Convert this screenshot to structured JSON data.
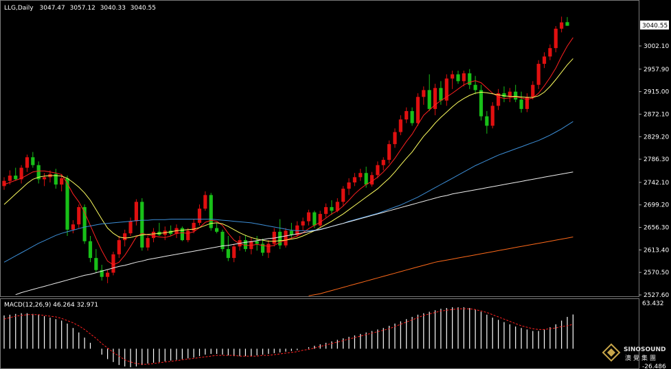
{
  "chart_data": {
    "type": "candlestick",
    "title": "LLG,Daily",
    "ohlc_readout": [
      "3047.47",
      "3057.12",
      "3040.33",
      "3040.55"
    ],
    "price_scale": {
      "ylim": [
        2527.6,
        3083.0
      ],
      "ticks": [
        "3002.10",
        "2957.90",
        "2915.00",
        "2872.10",
        "2829.20",
        "2786.30",
        "2742.10",
        "2699.20",
        "2656.30",
        "2613.40",
        "2570.50",
        "2527.60"
      ],
      "current_price_label": "3040.55",
      "grid": false
    },
    "candles": [
      [
        2735,
        2752,
        2728,
        2745
      ],
      [
        2745,
        2765,
        2738,
        2755
      ],
      [
        2755,
        2770,
        2745,
        2748
      ],
      [
        2748,
        2775,
        2740,
        2770
      ],
      [
        2770,
        2795,
        2762,
        2790
      ],
      [
        2790,
        2800,
        2770,
        2775
      ],
      [
        2775,
        2782,
        2740,
        2748
      ],
      [
        2748,
        2760,
        2735,
        2752
      ],
      [
        2752,
        2765,
        2742,
        2758
      ],
      [
        2758,
        2768,
        2730,
        2738
      ],
      [
        2738,
        2758,
        2725,
        2750
      ],
      [
        2750,
        2755,
        2640,
        2652
      ],
      [
        2652,
        2670,
        2645,
        2662
      ],
      [
        2662,
        2700,
        2655,
        2695
      ],
      [
        2695,
        2700,
        2625,
        2630
      ],
      [
        2630,
        2640,
        2590,
        2598
      ],
      [
        2598,
        2615,
        2570,
        2575
      ],
      [
        2575,
        2585,
        2555,
        2562
      ],
      [
        2562,
        2575,
        2550,
        2570
      ],
      [
        2570,
        2610,
        2565,
        2605
      ],
      [
        2605,
        2640,
        2598,
        2632
      ],
      [
        2632,
        2652,
        2620,
        2645
      ],
      [
        2645,
        2675,
        2640,
        2668
      ],
      [
        2668,
        2710,
        2660,
        2705
      ],
      [
        2705,
        2712,
        2612,
        2618
      ],
      [
        2618,
        2640,
        2612,
        2636
      ],
      [
        2636,
        2655,
        2628,
        2648
      ],
      [
        2648,
        2665,
        2640,
        2642
      ],
      [
        2642,
        2658,
        2632,
        2650
      ],
      [
        2650,
        2660,
        2640,
        2644
      ],
      [
        2644,
        2662,
        2636,
        2655
      ],
      [
        2655,
        2658,
        2630,
        2632
      ],
      [
        2632,
        2655,
        2628,
        2650
      ],
      [
        2650,
        2672,
        2645,
        2665
      ],
      [
        2665,
        2700,
        2660,
        2692
      ],
      [
        2692,
        2725,
        2688,
        2718
      ],
      [
        2718,
        2722,
        2650,
        2655
      ],
      [
        2655,
        2665,
        2645,
        2648
      ],
      [
        2648,
        2652,
        2610,
        2615
      ],
      [
        2615,
        2640,
        2592,
        2598
      ],
      [
        2598,
        2625,
        2590,
        2620
      ],
      [
        2620,
        2640,
        2612,
        2632
      ],
      [
        2632,
        2642,
        2610,
        2615
      ],
      [
        2615,
        2638,
        2605,
        2630
      ],
      [
        2630,
        2640,
        2612,
        2625
      ],
      [
        2625,
        2635,
        2602,
        2608
      ],
      [
        2608,
        2632,
        2598,
        2625
      ],
      [
        2625,
        2655,
        2620,
        2648
      ],
      [
        2648,
        2672,
        2615,
        2622
      ],
      [
        2622,
        2655,
        2618,
        2650
      ],
      [
        2650,
        2665,
        2635,
        2642
      ],
      [
        2642,
        2668,
        2638,
        2660
      ],
      [
        2660,
        2675,
        2650,
        2668
      ],
      [
        2668,
        2690,
        2660,
        2685
      ],
      [
        2685,
        2688,
        2655,
        2660
      ],
      [
        2660,
        2688,
        2655,
        2682
      ],
      [
        2682,
        2702,
        2675,
        2695
      ],
      [
        2695,
        2708,
        2680,
        2688
      ],
      [
        2688,
        2712,
        2685,
        2705
      ],
      [
        2705,
        2735,
        2698,
        2730
      ],
      [
        2730,
        2750,
        2718,
        2742
      ],
      [
        2742,
        2760,
        2735,
        2752
      ],
      [
        2752,
        2768,
        2745,
        2760
      ],
      [
        2760,
        2772,
        2732,
        2738
      ],
      [
        2738,
        2762,
        2734,
        2756
      ],
      [
        2756,
        2782,
        2750,
        2775
      ],
      [
        2775,
        2790,
        2765,
        2785
      ],
      [
        2785,
        2822,
        2778,
        2815
      ],
      [
        2815,
        2845,
        2808,
        2838
      ],
      [
        2838,
        2870,
        2832,
        2862
      ],
      [
        2862,
        2885,
        2855,
        2878
      ],
      [
        2878,
        2885,
        2850,
        2855
      ],
      [
        2855,
        2912,
        2850,
        2905
      ],
      [
        2905,
        2925,
        2890,
        2918
      ],
      [
        2918,
        2948,
        2878,
        2882
      ],
      [
        2882,
        2930,
        2870,
        2922
      ],
      [
        2922,
        2935,
        2890,
        2898
      ],
      [
        2898,
        2948,
        2888,
        2940
      ],
      [
        2940,
        2955,
        2920,
        2948
      ],
      [
        2948,
        2955,
        2930,
        2935
      ],
      [
        2935,
        2955,
        2925,
        2950
      ],
      [
        2950,
        2958,
        2920,
        2928
      ],
      [
        2928,
        2945,
        2910,
        2918
      ],
      [
        2918,
        2928,
        2860,
        2868
      ],
      [
        2868,
        2878,
        2835,
        2850
      ],
      [
        2850,
        2895,
        2845,
        2888
      ],
      [
        2888,
        2920,
        2880,
        2912
      ],
      [
        2912,
        2925,
        2895,
        2905
      ],
      [
        2905,
        2922,
        2895,
        2915
      ],
      [
        2915,
        2928,
        2895,
        2900
      ],
      [
        2900,
        2915,
        2875,
        2882
      ],
      [
        2882,
        2912,
        2876,
        2905
      ],
      [
        2905,
        2935,
        2900,
        2928
      ],
      [
        2928,
        2975,
        2920,
        2968
      ],
      [
        2968,
        2990,
        2960,
        2982
      ],
      [
        2982,
        3005,
        2975,
        2998
      ],
      [
        2998,
        3040,
        2990,
        3035
      ],
      [
        3035,
        3058,
        3028,
        3047
      ],
      [
        3047.47,
        3057.12,
        3040.33,
        3040.55
      ]
    ],
    "moving_averages": [
      {
        "color": "#ff2020",
        "values": [
          2738,
          2742,
          2746,
          2750,
          2756,
          2762,
          2764,
          2764,
          2762,
          2760,
          2757,
          2740,
          2720,
          2705,
          2685,
          2660,
          2635,
          2612,
          2592,
          2585,
          2590,
          2603,
          2620,
          2638,
          2645,
          2642,
          2640,
          2638,
          2637,
          2640,
          2645,
          2646,
          2645,
          2648,
          2656,
          2666,
          2670,
          2668,
          2660,
          2645,
          2632,
          2625,
          2622,
          2622,
          2624,
          2622,
          2620,
          2622,
          2628,
          2632,
          2636,
          2640,
          2646,
          2654,
          2660,
          2666,
          2674,
          2682,
          2688,
          2697,
          2708,
          2720,
          2730,
          2738,
          2744,
          2752,
          2762,
          2774,
          2788,
          2804,
          2820,
          2834,
          2852,
          2870,
          2880,
          2890,
          2898,
          2905,
          2912,
          2920,
          2928,
          2933,
          2936,
          2932,
          2922,
          2912,
          2905,
          2902,
          2903,
          2905,
          2903,
          2900,
          2903,
          2912,
          2926,
          2942,
          2960,
          2982,
          3002,
          3018
        ]
      },
      {
        "color": "#ffff60",
        "values": [
          2700,
          2710,
          2720,
          2730,
          2740,
          2748,
          2752,
          2754,
          2755,
          2755,
          2754,
          2750,
          2742,
          2733,
          2722,
          2708,
          2690,
          2672,
          2655,
          2645,
          2638,
          2636,
          2637,
          2640,
          2642,
          2643,
          2644,
          2645,
          2646,
          2648,
          2650,
          2651,
          2652,
          2653,
          2656,
          2660,
          2664,
          2665,
          2663,
          2658,
          2652,
          2646,
          2641,
          2637,
          2634,
          2632,
          2630,
          2630,
          2631,
          2632,
          2634,
          2636,
          2640,
          2645,
          2650,
          2656,
          2662,
          2668,
          2675,
          2682,
          2690,
          2698,
          2706,
          2714,
          2722,
          2730,
          2740,
          2750,
          2762,
          2775,
          2788,
          2800,
          2815,
          2830,
          2842,
          2855,
          2866,
          2876,
          2886,
          2895,
          2902,
          2908,
          2912,
          2914,
          2913,
          2911,
          2909,
          2907,
          2906,
          2906,
          2905,
          2904,
          2904,
          2907,
          2914,
          2925,
          2938,
          2952,
          2966,
          2978
        ]
      },
      {
        "color": "#3d8fd8",
        "values": [
          2590,
          2596,
          2602,
          2608,
          2614,
          2620,
          2626,
          2631,
          2636,
          2641,
          2645,
          2648,
          2651,
          2654,
          2657,
          2659,
          2661,
          2663,
          2664,
          2665,
          2666,
          2667,
          2668,
          2669,
          2670,
          2670,
          2671,
          2671,
          2671,
          2672,
          2672,
          2672,
          2672,
          2672,
          2672,
          2672,
          2672,
          2671,
          2670,
          2669,
          2668,
          2667,
          2666,
          2665,
          2663,
          2661,
          2659,
          2657,
          2655,
          2653,
          2651,
          2650,
          2650,
          2650,
          2651,
          2653,
          2655,
          2658,
          2661,
          2664,
          2668,
          2671,
          2674,
          2677,
          2680,
          2683,
          2687,
          2691,
          2695,
          2699,
          2704,
          2709,
          2714,
          2720,
          2726,
          2732,
          2738,
          2744,
          2750,
          2756,
          2762,
          2768,
          2774,
          2779,
          2784,
          2789,
          2794,
          2798,
          2802,
          2806,
          2810,
          2814,
          2818,
          2822,
          2827,
          2832,
          2838,
          2844,
          2851,
          2858
        ]
      },
      {
        "color": "#f0f0f0",
        "values": [
          2520,
          2524,
          2528,
          2532,
          2535,
          2538,
          2541,
          2544,
          2547,
          2550,
          2553,
          2556,
          2559,
          2562,
          2565,
          2567,
          2570,
          2573,
          2576,
          2579,
          2582,
          2584,
          2587,
          2590,
          2592,
          2595,
          2597,
          2599,
          2601,
          2603,
          2605,
          2607,
          2609,
          2611,
          2613,
          2615,
          2617,
          2619,
          2621,
          2622,
          2624,
          2626,
          2628,
          2629,
          2631,
          2633,
          2635,
          2636,
          2638,
          2640,
          2642,
          2644,
          2646,
          2648,
          2650,
          2652,
          2655,
          2658,
          2661,
          2664,
          2667,
          2670,
          2673,
          2676,
          2679,
          2682,
          2685,
          2688,
          2691,
          2694,
          2697,
          2700,
          2703,
          2706,
          2709,
          2712,
          2715,
          2717,
          2720,
          2722,
          2724,
          2726,
          2728,
          2730,
          2732,
          2734,
          2736,
          2738,
          2740,
          2742,
          2744,
          2746,
          2748,
          2750,
          2752,
          2754,
          2756,
          2758,
          2760,
          2762
        ]
      },
      {
        "color": "#ff6a1a",
        "values": [
          2420,
          2422,
          2424,
          2426,
          2428,
          2430,
          2432,
          2434,
          2436,
          2438,
          2440,
          2442,
          2444,
          2446,
          2448,
          2450,
          2452,
          2454,
          2456,
          2458,
          2460,
          2462,
          2464,
          2466,
          2468,
          2470,
          2472,
          2474,
          2476,
          2478,
          2480,
          2482,
          2484,
          2486,
          2488,
          2490,
          2492,
          2494,
          2496,
          2498,
          2500,
          2502,
          2504,
          2506,
          2508,
          2510,
          2512,
          2514,
          2516,
          2518,
          2520,
          2522,
          2524,
          2526,
          2528,
          2530,
          2533,
          2536,
          2539,
          2542,
          2545,
          2548,
          2551,
          2554,
          2557,
          2560,
          2563,
          2566,
          2569,
          2572,
          2575,
          2578,
          2581,
          2584,
          2587,
          2590,
          2592,
          2594,
          2596,
          2598,
          2600,
          2602,
          2604,
          2606,
          2608,
          2610,
          2612,
          2614,
          2616,
          2618,
          2620,
          2622,
          2624,
          2626,
          2628,
          2630,
          2632,
          2634,
          2636,
          2638
        ]
      }
    ],
    "macd": {
      "label": "MACD(12,26,9) 46.264 32.971",
      "ylim": [
        -26.486,
        63.432
      ],
      "tick_labels": [
        "63.432",
        "-26.486"
      ],
      "histogram": [
        45,
        46,
        47,
        48,
        48,
        47,
        46,
        44,
        42,
        40,
        38,
        34,
        28,
        22,
        15,
        8,
        0,
        -8,
        -14,
        -18,
        -22,
        -24,
        -25,
        -24,
        -22,
        -20,
        -19,
        -18,
        -17,
        -16,
        -15,
        -14,
        -13,
        -12,
        -10,
        -8,
        -7,
        -7,
        -8,
        -9,
        -10,
        -10,
        -10,
        -10,
        -9,
        -8,
        -7,
        -6,
        -5,
        -4,
        -3,
        -2,
        0,
        2,
        4,
        6,
        8,
        10,
        12,
        14,
        16,
        18,
        20,
        22,
        24,
        26,
        28,
        31,
        34,
        37,
        40,
        43,
        46,
        48,
        50,
        52,
        54,
        55,
        56,
        56,
        56,
        55,
        53,
        50,
        46,
        42,
        39,
        36,
        33,
        30,
        28,
        26,
        24,
        24,
        26,
        29,
        33,
        38,
        43,
        46.264
      ],
      "signal": [
        40,
        42,
        44,
        45,
        46,
        46,
        46,
        45,
        44,
        43,
        41,
        38,
        35,
        31,
        26,
        20,
        14,
        7,
        1,
        -5,
        -10,
        -15,
        -18,
        -20,
        -21,
        -21,
        -20,
        -19,
        -18,
        -17,
        -16,
        -15,
        -14,
        -13,
        -12,
        -11,
        -10,
        -9,
        -9,
        -9,
        -9,
        -10,
        -10,
        -10,
        -10,
        -9,
        -9,
        -8,
        -7,
        -6,
        -5,
        -4,
        -2,
        -1,
        1,
        3,
        5,
        7,
        9,
        11,
        13,
        15,
        17,
        19,
        21,
        23,
        25,
        27,
        30,
        33,
        36,
        39,
        42,
        45,
        47,
        49,
        51,
        52,
        53,
        54,
        54,
        54,
        53,
        51,
        49,
        46,
        43,
        40,
        37,
        34,
        31,
        29,
        27,
        26,
        26,
        27,
        28,
        30,
        31,
        32.971
      ]
    },
    "watermark": {
      "text_top": "SINOSOUND",
      "text_bottom": "澳覺集團"
    }
  }
}
